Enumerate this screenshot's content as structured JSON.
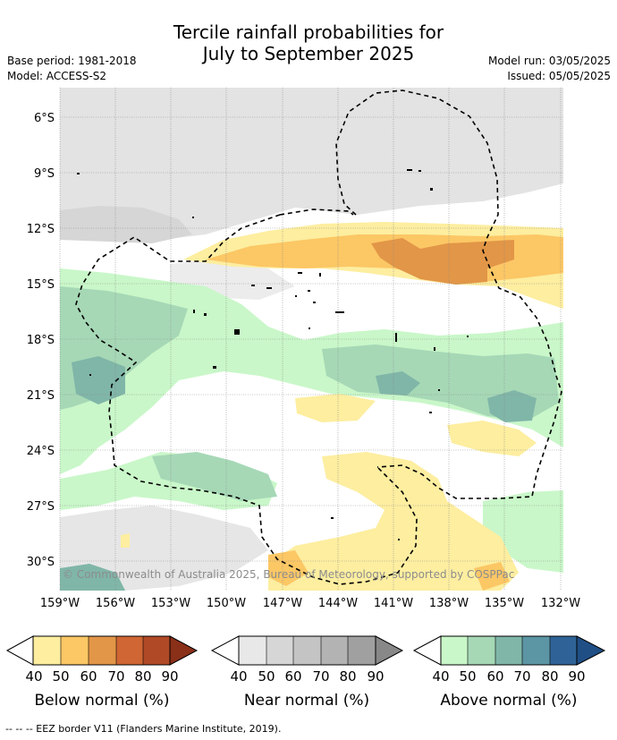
{
  "title_line1": "Tercile rainfall probabilities for",
  "title_line2": "July to September 2025",
  "meta": {
    "base_period": "Base period: 1981-2018",
    "model": "Model: ACCESS-S2",
    "model_run": "Model run: 03/05/2025",
    "issued": "Issued: 05/05/2025"
  },
  "map": {
    "lat_labels": [
      "6°S",
      "9°S",
      "12°S",
      "15°S",
      "18°S",
      "21°S",
      "24°S",
      "27°S",
      "30°S"
    ],
    "lon_labels": [
      "159°W",
      "156°W",
      "153°W",
      "150°W",
      "147°W",
      "144°W",
      "141°W",
      "138°W",
      "135°W",
      "132°W"
    ],
    "copyright": "© Commonwealth of Australia 2025, Bureau of Meteorology, supported by COSPPac"
  },
  "colorbars": [
    {
      "title": "Below normal (%)",
      "ticks": [
        "40",
        "50",
        "60",
        "70",
        "80",
        "90"
      ],
      "colors": [
        "#fdeea0",
        "#fcc765",
        "#e29647",
        "#cf6634",
        "#b04a26",
        "#8a2f18"
      ]
    },
    {
      "title": "Near normal (%)",
      "ticks": [
        "40",
        "50",
        "60",
        "70",
        "80",
        "90"
      ],
      "colors": [
        "#e8e8e8",
        "#d6d6d6",
        "#c4c4c4",
        "#b3b3b3",
        "#a0a0a0",
        "#888888"
      ]
    },
    {
      "title": "Above normal (%)",
      "ticks": [
        "40",
        "50",
        "60",
        "70",
        "80",
        "90"
      ],
      "colors": [
        "#c9f7c9",
        "#a6d8b6",
        "#80b6a8",
        "#5c96a4",
        "#2f6397",
        "#1f4f85"
      ]
    }
  ],
  "footnote": "--  --  -- EEZ border V11 (Flanders Marine Institute, 2019)."
}
